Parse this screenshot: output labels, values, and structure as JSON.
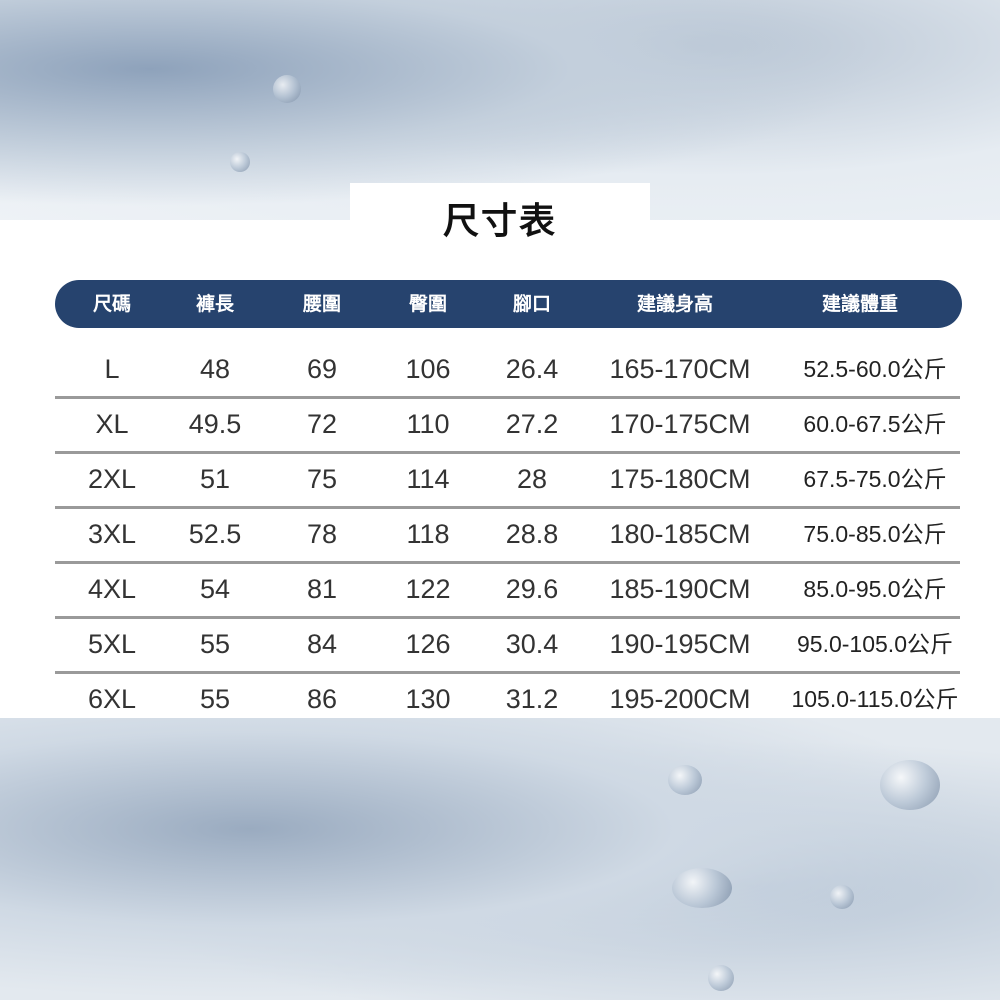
{
  "title": "尺寸表",
  "headers": [
    "尺碼",
    "褲長",
    "腰圍",
    "臀圍",
    "腳口",
    "建議身高",
    "建議體重"
  ],
  "rows": [
    [
      "L",
      "48",
      "69",
      "106",
      "26.4",
      "165-170CM",
      "52.5-60.0公斤"
    ],
    [
      "XL",
      "49.5",
      "72",
      "110",
      "27.2",
      "170-175CM",
      "60.0-67.5公斤"
    ],
    [
      "2XL",
      "51",
      "75",
      "114",
      "28",
      "175-180CM",
      "67.5-75.0公斤"
    ],
    [
      "3XL",
      "52.5",
      "78",
      "118",
      "28.8",
      "180-185CM",
      "75.0-85.0公斤"
    ],
    [
      "4XL",
      "54",
      "81",
      "122",
      "29.6",
      "185-190CM",
      "85.0-95.0公斤"
    ],
    [
      "5XL",
      "55",
      "84",
      "126",
      "30.4",
      "190-195CM",
      "95.0-105.0公斤"
    ],
    [
      "6XL",
      "55",
      "86",
      "130",
      "31.2",
      "195-200CM",
      "105.0-115.0公斤"
    ]
  ],
  "colors": {
    "header_bg": "#26436e",
    "header_text": "#ffffff",
    "divider": "#9a9a9a"
  }
}
